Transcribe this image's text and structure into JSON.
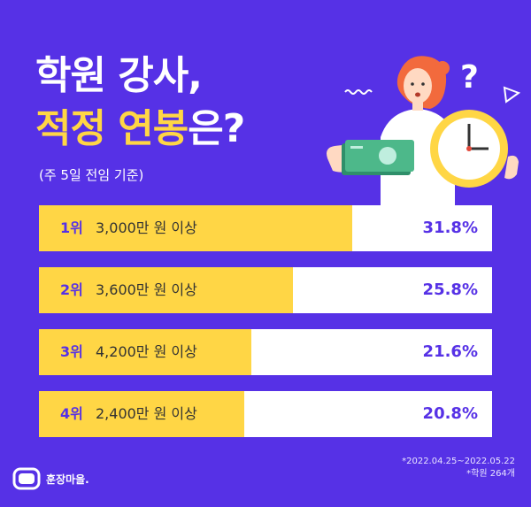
{
  "title": {
    "line1": "학원 강사,",
    "line2_part1": "적정 연봉",
    "line2_part2": "은?"
  },
  "subtitle": "(주 5일 전임 기준)",
  "chart_data": {
    "type": "bar",
    "orientation": "horizontal",
    "title": "학원 강사, 적정 연봉은?",
    "subtitle": "(주 5일 전임 기준)",
    "categories": [
      "3,000만 원 이상",
      "3,600만 원 이상",
      "4,200만 원 이상",
      "2,400만 원 이상"
    ],
    "ranks": [
      "1위",
      "2위",
      "3위",
      "4위"
    ],
    "values": [
      31.8,
      25.8,
      21.6,
      20.8
    ],
    "value_labels": [
      "31.8%",
      "25.8%",
      "21.6%",
      "20.8%"
    ],
    "unit": "%",
    "xlim": [
      0,
      46
    ],
    "colors": {
      "bar": "#ffd645",
      "track": "#ffffff",
      "background": "#5631e6"
    }
  },
  "illustration": {
    "question_mark": "?",
    "icons": [
      "woman-icon",
      "money-icon",
      "clock-icon",
      "question-icon",
      "wave-icon",
      "triangle-icon"
    ]
  },
  "footnote": {
    "period": "*2022.04.25~2022.05.22",
    "sample": "*학원 264개"
  },
  "logo": {
    "text": "훈장마을."
  }
}
